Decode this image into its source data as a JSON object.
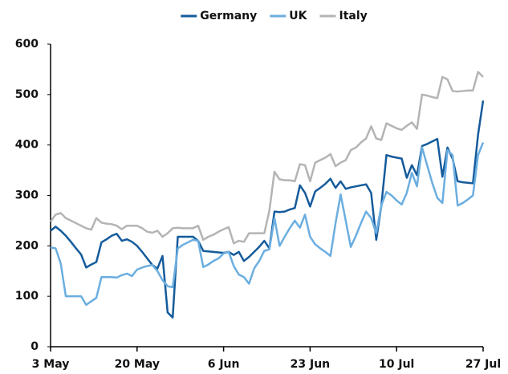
{
  "chart_data": {
    "type": "line",
    "x": [
      "3 May",
      "4 May",
      "5 May",
      "6 May",
      "7 May",
      "8 May",
      "9 May",
      "10 May",
      "11 May",
      "12 May",
      "13 May",
      "14 May",
      "15 May",
      "16 May",
      "17 May",
      "18 May",
      "19 May",
      "20 May",
      "21 May",
      "22 May",
      "23 May",
      "24 May",
      "25 May",
      "26 May",
      "27 May",
      "28 May",
      "29 May",
      "30 May",
      "31 May",
      "1 Jun",
      "2 Jun",
      "3 Jun",
      "4 Jun",
      "5 Jun",
      "6 Jun",
      "7 Jun",
      "8 Jun",
      "9 Jun",
      "10 Jun",
      "11 Jun",
      "12 Jun",
      "13 Jun",
      "14 Jun",
      "15 Jun",
      "16 Jun",
      "17 Jun",
      "18 Jun",
      "19 Jun",
      "20 Jun",
      "21 Jun",
      "22 Jun",
      "23 Jun",
      "24 Jun",
      "25 Jun",
      "26 Jun",
      "27 Jun",
      "28 Jun",
      "29 Jun",
      "30 Jun",
      "1 Jul",
      "2 Jul",
      "3 Jul",
      "4 Jul",
      "5 Jul",
      "6 Jul",
      "7 Jul",
      "8 Jul",
      "9 Jul",
      "10 Jul",
      "11 Jul",
      "12 Jul",
      "13 Jul",
      "14 Jul",
      "15 Jul",
      "16 Jul",
      "17 Jul",
      "18 Jul",
      "19 Jul",
      "20 Jul",
      "21 Jul",
      "22 Jul",
      "23 Jul",
      "24 Jul",
      "25 Jul",
      "26 Jul",
      "27 Jul"
    ],
    "series": [
      {
        "name": "Germany",
        "color": "#155b9b",
        "values": [
          230,
          238,
          230,
          220,
          208,
          195,
          183,
          157,
          163,
          168,
          207,
          213,
          220,
          224,
          210,
          213,
          208,
          200,
          188,
          175,
          162,
          155,
          180,
          68,
          58,
          218,
          218,
          218,
          218,
          210,
          190,
          189,
          188,
          187,
          186,
          188,
          182,
          188,
          170,
          178,
          188,
          198,
          210,
          195,
          268,
          267,
          268,
          272,
          275,
          320,
          305,
          278,
          308,
          315,
          323,
          333,
          315,
          328,
          313,
          316,
          318,
          320,
          322,
          305,
          212,
          280,
          380,
          377,
          375,
          373,
          335,
          360,
          340,
          398,
          402,
          407,
          412,
          337,
          395,
          373,
          328,
          326,
          325,
          324,
          420,
          488
        ]
      },
      {
        "name": "UK",
        "color": "#6baee0",
        "values": [
          197,
          195,
          165,
          100,
          100,
          100,
          100,
          83,
          90,
          97,
          138,
          138,
          138,
          137,
          142,
          145,
          140,
          153,
          157,
          160,
          162,
          150,
          132,
          120,
          118,
          195,
          202,
          207,
          212,
          210,
          158,
          163,
          170,
          175,
          185,
          188,
          160,
          143,
          138,
          125,
          155,
          170,
          190,
          193,
          255,
          200,
          218,
          235,
          250,
          236,
          262,
          218,
          203,
          195,
          188,
          180,
          245,
          302,
          250,
          198,
          220,
          245,
          268,
          255,
          225,
          280,
          307,
          300,
          290,
          282,
          305,
          345,
          318,
          395,
          360,
          325,
          295,
          285,
          390,
          380,
          280,
          285,
          292,
          300,
          380,
          405
        ]
      },
      {
        "name": "Italy",
        "color": "#b4b4b4",
        "values": [
          248,
          262,
          265,
          255,
          250,
          245,
          240,
          235,
          232,
          255,
          246,
          244,
          243,
          240,
          233,
          240,
          240,
          240,
          235,
          228,
          226,
          230,
          218,
          225,
          235,
          236,
          235,
          235,
          235,
          240,
          212,
          218,
          222,
          228,
          233,
          237,
          205,
          210,
          208,
          225,
          225,
          225,
          225,
          270,
          347,
          332,
          330,
          330,
          328,
          362,
          360,
          328,
          365,
          370,
          375,
          382,
          358,
          365,
          370,
          390,
          395,
          405,
          413,
          437,
          413,
          410,
          443,
          438,
          433,
          430,
          438,
          445,
          432,
          500,
          498,
          495,
          493,
          535,
          530,
          507,
          506,
          507,
          508,
          508,
          545,
          535
        ]
      }
    ],
    "xticks": [
      "3 May",
      "20 May",
      "6 Jun",
      "23 Jun",
      "10 Jul",
      "27 Jul"
    ],
    "ylim": [
      0,
      600
    ],
    "yticks": [
      0,
      100,
      200,
      300,
      400,
      500,
      600
    ],
    "legend": "top"
  }
}
